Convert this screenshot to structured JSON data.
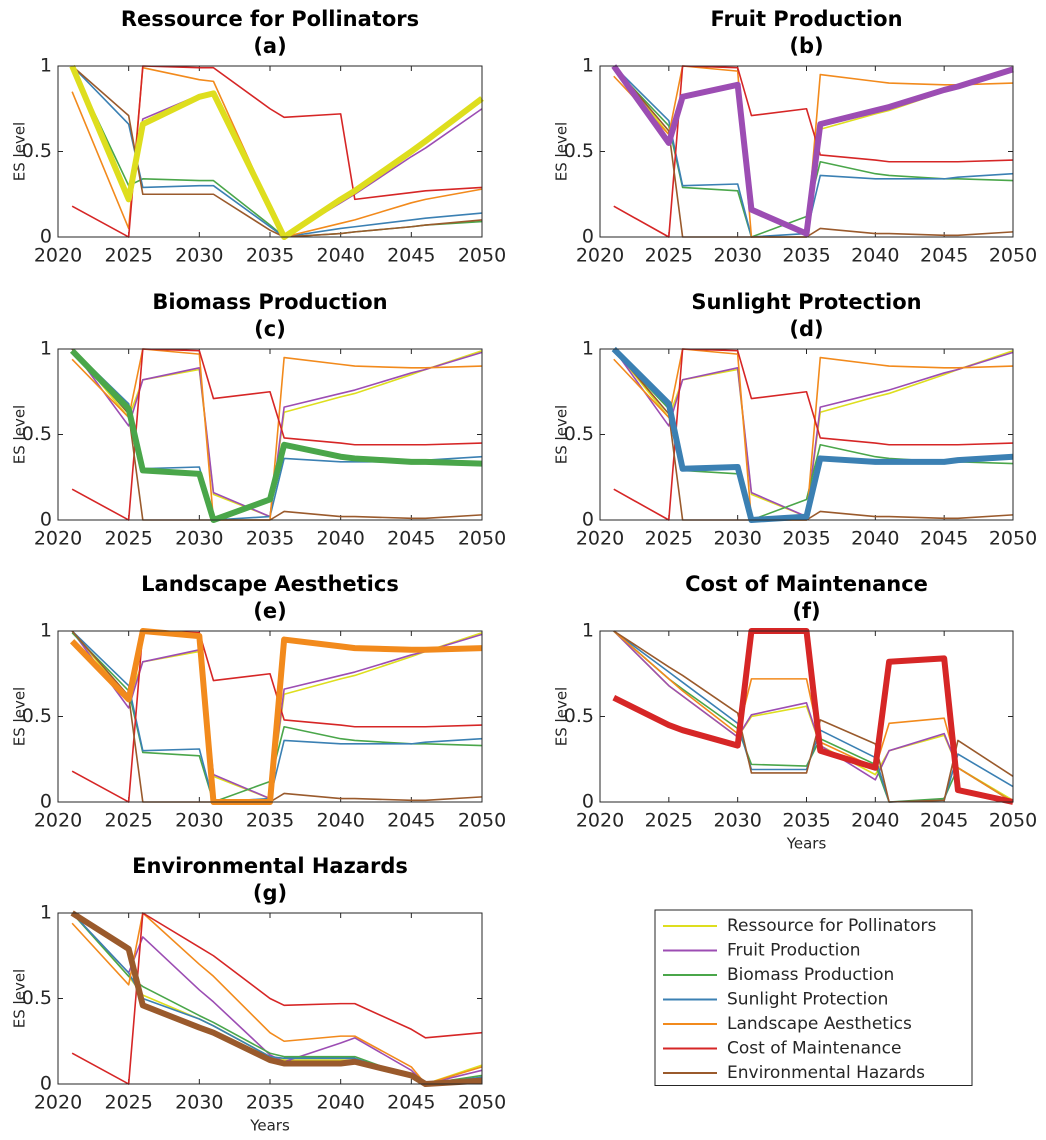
{
  "chart_data": {
    "type": "line",
    "xlabel": "Years",
    "ylabel": "ES level",
    "x": [
      2021,
      2025,
      2026,
      2030,
      2031,
      2035,
      2036,
      2040,
      2041,
      2045,
      2046,
      2050
    ],
    "xlim": [
      2020,
      2050
    ],
    "ylim": [
      0,
      1
    ],
    "xticks": [
      2020,
      2025,
      2030,
      2035,
      2040,
      2045,
      2050
    ],
    "yticks": [
      0,
      0.5,
      1
    ],
    "grid": false,
    "legend": "lower right",
    "series": [
      {
        "name": "Ressource for Pollinators",
        "color": "#dede1e"
      },
      {
        "name": "Fruit Production",
        "color": "#9c4db3"
      },
      {
        "name": "Biomass Production",
        "color": "#4aa64a"
      },
      {
        "name": "Sunlight Protection",
        "color": "#3b80b3"
      },
      {
        "name": "Landscape Aesthetics",
        "color": "#f28a1c"
      },
      {
        "name": "Cost of Maintenance",
        "color": "#d62626"
      },
      {
        "name": "Environmental Hazards",
        "color": "#9a5a2c"
      }
    ],
    "panels": [
      {
        "title": "Ressource for Pollinators",
        "subtitle": "(a)",
        "highlight": 0,
        "xlabel_shown": false,
        "values": [
          [
            1,
            0.22,
            0.66,
            0.82,
            0.84,
            0.17,
            0.0,
            0.22,
            0.27,
            0.5,
            0.56,
            0.81
          ],
          [
            1,
            0.25,
            0.69,
            0.83,
            0.85,
            0.17,
            0.0,
            0.2,
            0.25,
            0.47,
            0.52,
            0.75
          ],
          [
            1,
            0.3,
            0.34,
            0.33,
            0.33,
            0.07,
            0.0,
            0.02,
            0.03,
            0.06,
            0.07,
            0.09
          ],
          [
            1,
            0.66,
            0.29,
            0.3,
            0.3,
            0.06,
            0.0,
            0.05,
            0.06,
            0.1,
            0.11,
            0.14
          ],
          [
            0.85,
            0.05,
            0.99,
            0.92,
            0.91,
            0.18,
            0.0,
            0.08,
            0.1,
            0.2,
            0.22,
            0.28
          ],
          [
            0.18,
            0.0,
            1.0,
            0.99,
            0.99,
            0.75,
            0.7,
            0.72,
            0.22,
            0.26,
            0.27,
            0.29
          ],
          [
            1,
            0.71,
            0.25,
            0.25,
            0.25,
            0.04,
            0.0,
            0.02,
            0.03,
            0.06,
            0.07,
            0.1
          ]
        ]
      },
      {
        "title": "Fruit Production",
        "subtitle": "(b)",
        "highlight": 1,
        "xlabel_shown": false,
        "values": [
          [
            1,
            0.6,
            0.82,
            0.88,
            0.15,
            0.02,
            0.63,
            0.72,
            0.74,
            0.85,
            0.88,
            0.99
          ],
          [
            1,
            0.55,
            0.82,
            0.89,
            0.16,
            0.02,
            0.66,
            0.74,
            0.76,
            0.86,
            0.88,
            0.98
          ],
          [
            0.99,
            0.65,
            0.29,
            0.27,
            0.0,
            0.12,
            0.44,
            0.37,
            0.36,
            0.34,
            0.34,
            0.33
          ],
          [
            1,
            0.68,
            0.3,
            0.31,
            0.0,
            0.02,
            0.36,
            0.34,
            0.34,
            0.34,
            0.35,
            0.37
          ],
          [
            0.94,
            0.6,
            1.0,
            0.97,
            0.0,
            0.0,
            0.95,
            0.91,
            0.9,
            0.89,
            0.89,
            0.9
          ],
          [
            0.18,
            0.0,
            1.0,
            0.99,
            0.71,
            0.75,
            0.48,
            0.45,
            0.44,
            0.44,
            0.44,
            0.45
          ],
          [
            1,
            0.62,
            0.0,
            0.0,
            0.0,
            0.0,
            0.05,
            0.02,
            0.02,
            0.01,
            0.01,
            0.03
          ]
        ]
      },
      {
        "title": "Biomass Production",
        "subtitle": "(c)",
        "highlight": 2,
        "xlabel_shown": false,
        "values": [
          [
            1,
            0.6,
            0.82,
            0.88,
            0.15,
            0.02,
            0.63,
            0.72,
            0.74,
            0.85,
            0.88,
            0.99
          ],
          [
            1,
            0.55,
            0.82,
            0.89,
            0.16,
            0.02,
            0.66,
            0.74,
            0.76,
            0.86,
            0.88,
            0.98
          ],
          [
            0.99,
            0.65,
            0.29,
            0.27,
            0.0,
            0.12,
            0.44,
            0.37,
            0.36,
            0.34,
            0.34,
            0.33
          ],
          [
            1,
            0.68,
            0.3,
            0.31,
            0.0,
            0.02,
            0.36,
            0.34,
            0.34,
            0.34,
            0.35,
            0.37
          ],
          [
            0.94,
            0.6,
            1.0,
            0.97,
            0.0,
            0.0,
            0.95,
            0.91,
            0.9,
            0.89,
            0.89,
            0.9
          ],
          [
            0.18,
            0.0,
            1.0,
            0.99,
            0.71,
            0.75,
            0.48,
            0.45,
            0.44,
            0.44,
            0.44,
            0.45
          ],
          [
            1,
            0.62,
            0.0,
            0.0,
            0.0,
            0.0,
            0.05,
            0.02,
            0.02,
            0.01,
            0.01,
            0.03
          ]
        ]
      },
      {
        "title": "Sunlight Protection",
        "subtitle": "(d)",
        "highlight": 3,
        "xlabel_shown": false,
        "values": [
          [
            1,
            0.6,
            0.82,
            0.88,
            0.15,
            0.02,
            0.63,
            0.72,
            0.74,
            0.85,
            0.88,
            0.99
          ],
          [
            1,
            0.55,
            0.82,
            0.89,
            0.16,
            0.02,
            0.66,
            0.74,
            0.76,
            0.86,
            0.88,
            0.98
          ],
          [
            0.99,
            0.65,
            0.29,
            0.27,
            0.0,
            0.12,
            0.44,
            0.37,
            0.36,
            0.34,
            0.34,
            0.33
          ],
          [
            1,
            0.68,
            0.3,
            0.31,
            0.0,
            0.02,
            0.36,
            0.34,
            0.34,
            0.34,
            0.35,
            0.37
          ],
          [
            0.94,
            0.6,
            1.0,
            0.97,
            0.0,
            0.0,
            0.95,
            0.91,
            0.9,
            0.89,
            0.89,
            0.9
          ],
          [
            0.18,
            0.0,
            1.0,
            0.99,
            0.71,
            0.75,
            0.48,
            0.45,
            0.44,
            0.44,
            0.44,
            0.45
          ],
          [
            1,
            0.62,
            0.0,
            0.0,
            0.0,
            0.0,
            0.05,
            0.02,
            0.02,
            0.01,
            0.01,
            0.03
          ]
        ]
      },
      {
        "title": "Landscape Aesthetics",
        "subtitle": "(e)",
        "highlight": 4,
        "xlabel_shown": false,
        "values": [
          [
            1,
            0.6,
            0.82,
            0.88,
            0.15,
            0.02,
            0.63,
            0.72,
            0.74,
            0.85,
            0.88,
            0.99
          ],
          [
            1,
            0.55,
            0.82,
            0.89,
            0.16,
            0.02,
            0.66,
            0.74,
            0.76,
            0.86,
            0.88,
            0.98
          ],
          [
            0.99,
            0.65,
            0.29,
            0.27,
            0.0,
            0.12,
            0.44,
            0.37,
            0.36,
            0.34,
            0.34,
            0.33
          ],
          [
            1,
            0.68,
            0.3,
            0.31,
            0.0,
            0.02,
            0.36,
            0.34,
            0.34,
            0.34,
            0.35,
            0.37
          ],
          [
            0.94,
            0.6,
            1.0,
            0.97,
            0.0,
            0.0,
            0.95,
            0.91,
            0.9,
            0.89,
            0.89,
            0.9
          ],
          [
            0.18,
            0.0,
            1.0,
            0.99,
            0.71,
            0.75,
            0.48,
            0.45,
            0.44,
            0.44,
            0.44,
            0.45
          ],
          [
            1,
            0.62,
            0.0,
            0.0,
            0.0,
            0.0,
            0.05,
            0.02,
            0.02,
            0.01,
            0.01,
            0.03
          ]
        ]
      },
      {
        "title": "Cost of Maintenance",
        "subtitle": "(f)",
        "highlight": 5,
        "xlabel_shown": true,
        "values": [
          [
            1,
            0.68,
            0.62,
            0.38,
            0.5,
            0.56,
            0.33,
            0.16,
            0.3,
            0.39,
            0.2,
            0.01
          ],
          [
            1,
            0.68,
            0.62,
            0.38,
            0.51,
            0.58,
            0.33,
            0.13,
            0.3,
            0.4,
            0.2,
            0.0
          ],
          [
            1,
            0.72,
            0.66,
            0.43,
            0.22,
            0.21,
            0.37,
            0.22,
            0.0,
            0.02,
            0.2,
            0.0
          ],
          [
            1,
            0.76,
            0.7,
            0.46,
            0.19,
            0.19,
            0.42,
            0.26,
            0.0,
            0.01,
            0.28,
            0.09
          ],
          [
            1,
            0.72,
            0.65,
            0.4,
            0.72,
            0.72,
            0.35,
            0.2,
            0.46,
            0.49,
            0.2,
            0.0
          ],
          [
            0.61,
            0.45,
            0.42,
            0.33,
            1.0,
            1.0,
            0.3,
            0.2,
            0.82,
            0.84,
            0.07,
            0.0
          ],
          [
            1,
            0.79,
            0.74,
            0.52,
            0.17,
            0.17,
            0.48,
            0.34,
            0.0,
            0.01,
            0.36,
            0.15
          ]
        ]
      },
      {
        "title": "Environmental Hazards",
        "subtitle": "(g)",
        "highlight": 6,
        "xlabel_shown": true,
        "values": [
          [
            1,
            0.63,
            0.52,
            0.38,
            0.34,
            0.16,
            0.14,
            0.14,
            0.14,
            0.04,
            0.0,
            0.11
          ],
          [
            1,
            0.65,
            0.86,
            0.55,
            0.48,
            0.17,
            0.13,
            0.24,
            0.27,
            0.08,
            0.0,
            0.08
          ],
          [
            1,
            0.63,
            0.57,
            0.4,
            0.36,
            0.18,
            0.16,
            0.16,
            0.16,
            0.04,
            0.0,
            0.05
          ],
          [
            1,
            0.65,
            0.5,
            0.38,
            0.34,
            0.16,
            0.15,
            0.15,
            0.15,
            0.04,
            0.0,
            0.04
          ],
          [
            0.94,
            0.58,
            1.0,
            0.7,
            0.63,
            0.3,
            0.25,
            0.28,
            0.28,
            0.1,
            0.0,
            0.1
          ],
          [
            0.18,
            0.0,
            1.0,
            0.8,
            0.75,
            0.5,
            0.46,
            0.47,
            0.47,
            0.32,
            0.27,
            0.3
          ],
          [
            1,
            0.79,
            0.46,
            0.33,
            0.3,
            0.14,
            0.12,
            0.12,
            0.13,
            0.05,
            0.0,
            0.02
          ]
        ]
      }
    ]
  }
}
